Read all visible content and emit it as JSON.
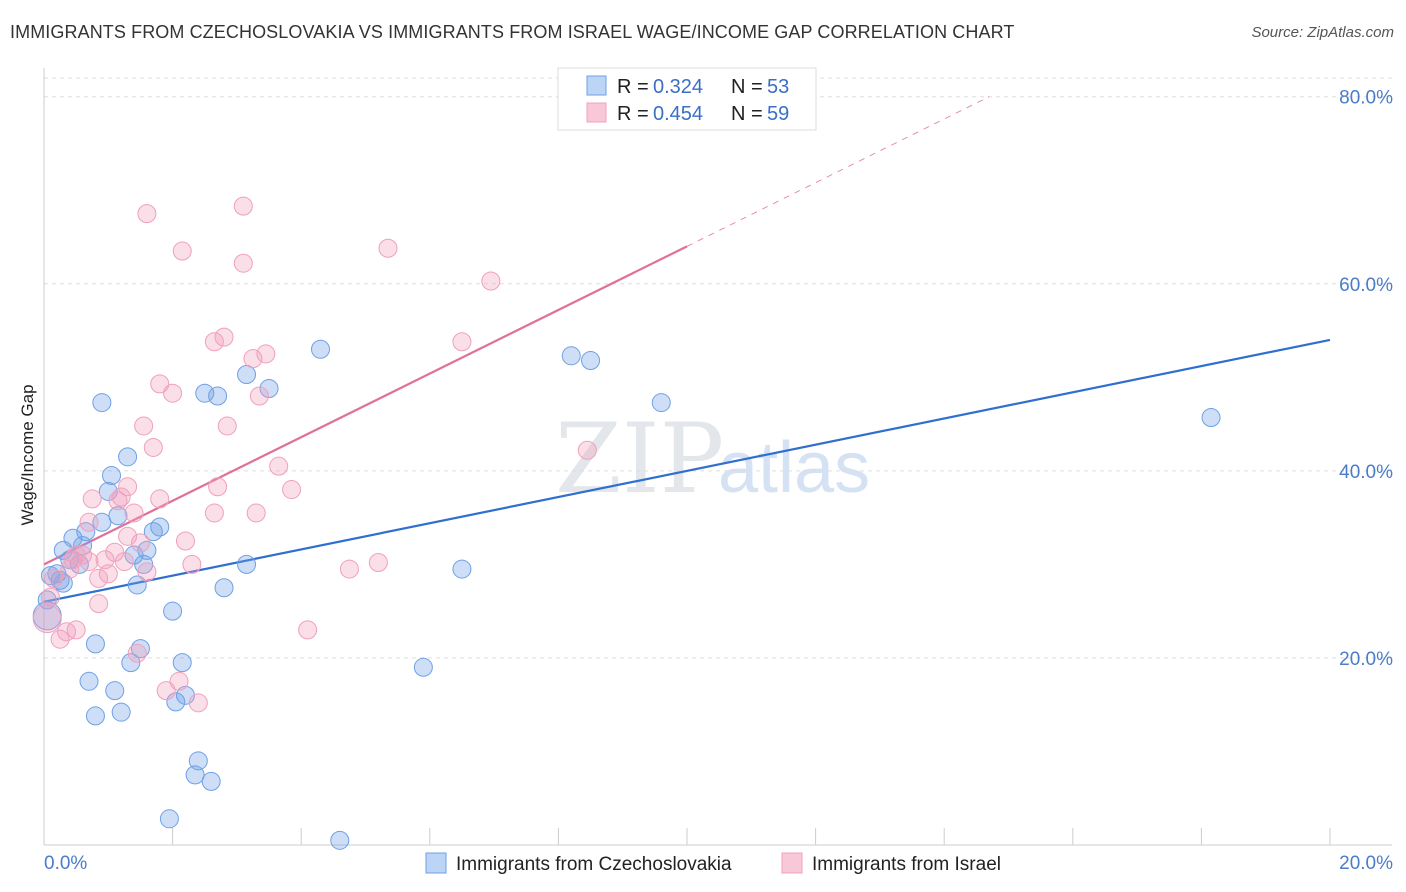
{
  "title": "IMMIGRANTS FROM CZECHOSLOVAKIA VS IMMIGRANTS FROM ISRAEL WAGE/INCOME GAP CORRELATION CHART",
  "source": "Source: ZipAtlas.com",
  "watermark": {
    "zip": "ZIP",
    "atlas": "atlas"
  },
  "chart_data": {
    "type": "scatter",
    "title": "IMMIGRANTS FROM CZECHOSLOVAKIA VS IMMIGRANTS FROM ISRAEL WAGE/INCOME GAP CORRELATION CHART",
    "xlabel": "",
    "ylabel": "Wage/Income Gap",
    "xlim": [
      0,
      20
    ],
    "ylim": [
      0,
      82
    ],
    "x_ticks": [
      {
        "value": 0,
        "label": "0.0%"
      },
      {
        "value": 20,
        "label": "20.0%"
      }
    ],
    "y_ticks": [
      {
        "value": 20,
        "label": "20.0%"
      },
      {
        "value": 40,
        "label": "40.0%"
      },
      {
        "value": 60,
        "label": "60.0%"
      },
      {
        "value": 80,
        "label": "80.0%"
      }
    ],
    "grid": true,
    "legend_position": "top-center",
    "series": [
      {
        "name": "Immigrants from Czechoslovakia",
        "color": "#6fa0e6",
        "line_color": "#2f6fcf",
        "stats": {
          "r_label": "R =",
          "r": "0.324",
          "n_label": "N =",
          "n": "53"
        },
        "trend": {
          "x0": 0,
          "y0": 26,
          "x1": 20,
          "y1": 54
        },
        "points": [
          [
            0.05,
            24.5
          ],
          [
            0.05,
            26.2
          ],
          [
            0.1,
            28.8
          ],
          [
            0.2,
            29
          ],
          [
            0.3,
            28
          ],
          [
            0.25,
            28.3
          ],
          [
            0.3,
            31.5
          ],
          [
            0.4,
            30.5
          ],
          [
            0.45,
            32.8
          ],
          [
            0.55,
            30
          ],
          [
            0.6,
            32
          ],
          [
            0.65,
            33.5
          ],
          [
            0.9,
            34.5
          ],
          [
            1.0,
            37.8
          ],
          [
            1.05,
            39.5
          ],
          [
            1.15,
            35.2
          ],
          [
            1.3,
            41.5
          ],
          [
            0.9,
            47.3
          ],
          [
            1.4,
            31
          ],
          [
            1.55,
            30
          ],
          [
            1.6,
            31.5
          ],
          [
            1.7,
            33.5
          ],
          [
            1.8,
            34
          ],
          [
            1.45,
            27.8
          ],
          [
            2.0,
            25
          ],
          [
            0.8,
            21.5
          ],
          [
            1.5,
            21
          ],
          [
            1.35,
            19.5
          ],
          [
            2.15,
            19.5
          ],
          [
            0.7,
            17.5
          ],
          [
            1.1,
            16.5
          ],
          [
            1.2,
            14.2
          ],
          [
            0.8,
            13.8
          ],
          [
            2.05,
            15.3
          ],
          [
            2.2,
            16
          ],
          [
            2.4,
            9
          ],
          [
            2.35,
            7.5
          ],
          [
            2.6,
            6.8
          ],
          [
            1.95,
            2.8
          ],
          [
            4.6,
            0.5
          ],
          [
            2.5,
            48.3
          ],
          [
            2.7,
            48
          ],
          [
            3.15,
            50.3
          ],
          [
            3.5,
            48.8
          ],
          [
            4.3,
            53
          ],
          [
            2.8,
            27.5
          ],
          [
            3.15,
            30
          ],
          [
            5.9,
            19
          ],
          [
            6.5,
            29.5
          ],
          [
            8.2,
            52.3
          ],
          [
            8.5,
            51.8
          ],
          [
            9.6,
            47.3
          ],
          [
            18.15,
            45.7
          ]
        ]
      },
      {
        "name": "Immigrants from Israel",
        "color": "#f0a0bc",
        "line_color": "#e0709a",
        "stats": {
          "r_label": "R =",
          "r": "0.454",
          "n_label": "N =",
          "n": "59"
        },
        "trend": {
          "x0": 0,
          "y0": 30,
          "x1": 10,
          "y1": 64
        },
        "trend_dashed": {
          "x0": 10,
          "y0": 64,
          "x1": 14.7,
          "y1": 80
        },
        "points": [
          [
            0.05,
            24.2
          ],
          [
            0.1,
            26.5
          ],
          [
            0.15,
            28.5
          ],
          [
            0.25,
            22
          ],
          [
            0.35,
            22.8
          ],
          [
            0.4,
            29.5
          ],
          [
            0.45,
            30.5
          ],
          [
            0.5,
            31
          ],
          [
            0.5,
            23
          ],
          [
            0.6,
            31
          ],
          [
            0.7,
            30.3
          ],
          [
            0.7,
            34.5
          ],
          [
            0.75,
            37
          ],
          [
            0.85,
            28.5
          ],
          [
            0.85,
            25.8
          ],
          [
            0.95,
            30.5
          ],
          [
            1.0,
            29
          ],
          [
            1.1,
            31.3
          ],
          [
            1.15,
            36.8
          ],
          [
            1.2,
            37.2
          ],
          [
            1.25,
            30.3
          ],
          [
            1.3,
            33
          ],
          [
            1.3,
            38.3
          ],
          [
            1.4,
            35.5
          ],
          [
            1.45,
            20.5
          ],
          [
            1.5,
            32.3
          ],
          [
            1.55,
            44.8
          ],
          [
            1.6,
            29.2
          ],
          [
            1.7,
            42.5
          ],
          [
            1.8,
            49.3
          ],
          [
            1.8,
            37
          ],
          [
            1.9,
            16.5
          ],
          [
            2.0,
            48.3
          ],
          [
            2.1,
            17.5
          ],
          [
            2.2,
            32.5
          ],
          [
            2.3,
            30
          ],
          [
            2.4,
            15.2
          ],
          [
            2.65,
            53.8
          ],
          [
            2.65,
            35.5
          ],
          [
            2.7,
            38.3
          ],
          [
            2.8,
            54.3
          ],
          [
            2.85,
            44.8
          ],
          [
            3.1,
            62.2
          ],
          [
            3.25,
            52
          ],
          [
            3.3,
            35.5
          ],
          [
            3.35,
            48
          ],
          [
            3.45,
            52.5
          ],
          [
            3.65,
            40.5
          ],
          [
            3.85,
            38
          ],
          [
            4.1,
            23
          ],
          [
            4.75,
            29.5
          ],
          [
            5.2,
            30.2
          ],
          [
            5.35,
            63.8
          ],
          [
            6.5,
            53.8
          ],
          [
            6.95,
            60.3
          ],
          [
            2.15,
            63.5
          ],
          [
            3.1,
            68.3
          ],
          [
            1.6,
            67.5
          ],
          [
            8.45,
            42.2
          ]
        ]
      }
    ]
  },
  "legend": {
    "items": [
      {
        "label": "Immigrants from Czechoslovakia"
      },
      {
        "label": "Immigrants from Israel"
      }
    ]
  }
}
